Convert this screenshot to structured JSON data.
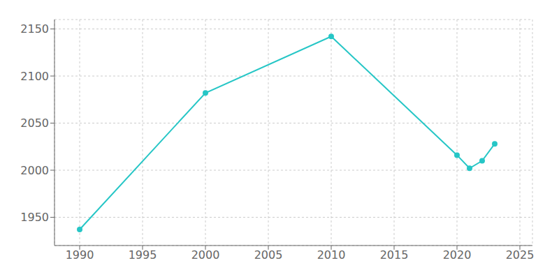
{
  "chart_data": {
    "type": "line",
    "x": [
      1990,
      2000,
      2010,
      2020,
      2021,
      2022,
      2023
    ],
    "values": [
      1937,
      2082,
      2142,
      2016,
      2002,
      2010,
      2028
    ],
    "color": "#26c6c6",
    "marker": "circle",
    "xlim": [
      1988,
      2026
    ],
    "xticks": [
      1990,
      1995,
      2000,
      2005,
      2010,
      2015,
      2020,
      2025
    ],
    "ylim": [
      1920,
      2160
    ],
    "yticks": [
      1950,
      2000,
      2050,
      2100,
      2150
    ],
    "grid": true
  }
}
